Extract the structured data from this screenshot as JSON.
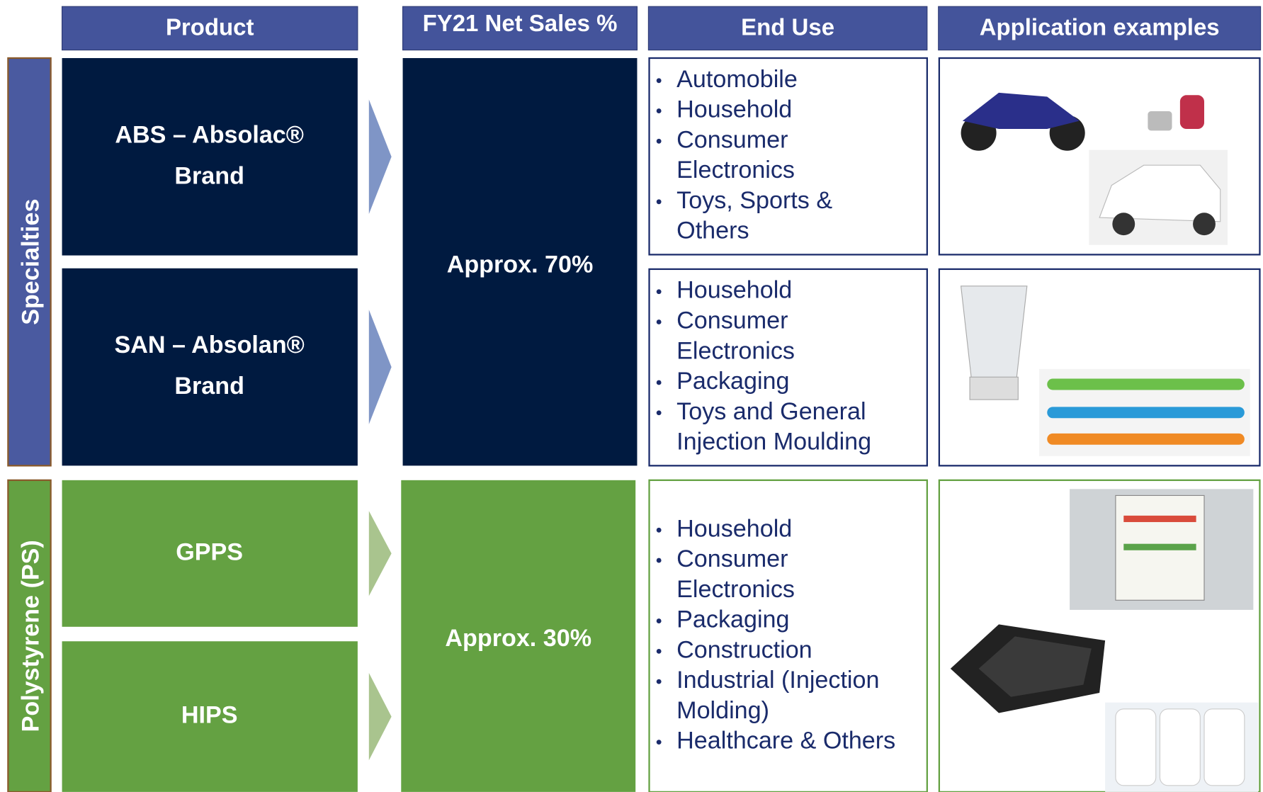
{
  "header": {
    "columns": [
      "Product",
      "FY21 Net Sales %",
      "End Use",
      "Application examples"
    ]
  },
  "groups": [
    {
      "label": "Specialties",
      "net_sales": "Approx. 70%",
      "products": [
        [
          "ABS – Absolac®",
          "Brand"
        ],
        [
          "SAN – Absolan®",
          "Brand"
        ]
      ],
      "end_uses": [
        [
          [
            "Automobile"
          ],
          [
            "Household"
          ],
          [
            "Consumer",
            "Electronics"
          ],
          [
            "Toys, Sports &",
            "Others"
          ]
        ],
        [
          [
            "Household"
          ],
          [
            "Consumer",
            "Electronics"
          ],
          [
            "Packaging"
          ],
          [
            "Toys and General",
            "Injection Moulding"
          ]
        ]
      ]
    },
    {
      "label": "Polystyrene (PS)",
      "net_sales": "Approx. 30%",
      "products": [
        [
          "GPPS"
        ],
        [
          "HIPS"
        ]
      ],
      "end_uses": [
        [
          [
            "Household"
          ],
          [
            "Consumer",
            "Electronics"
          ],
          [
            "Packaging"
          ],
          [
            "Construction"
          ],
          [
            "Industrial (Injection",
            "Molding)"
          ],
          [
            "Healthcare & Others"
          ]
        ]
      ]
    }
  ]
}
